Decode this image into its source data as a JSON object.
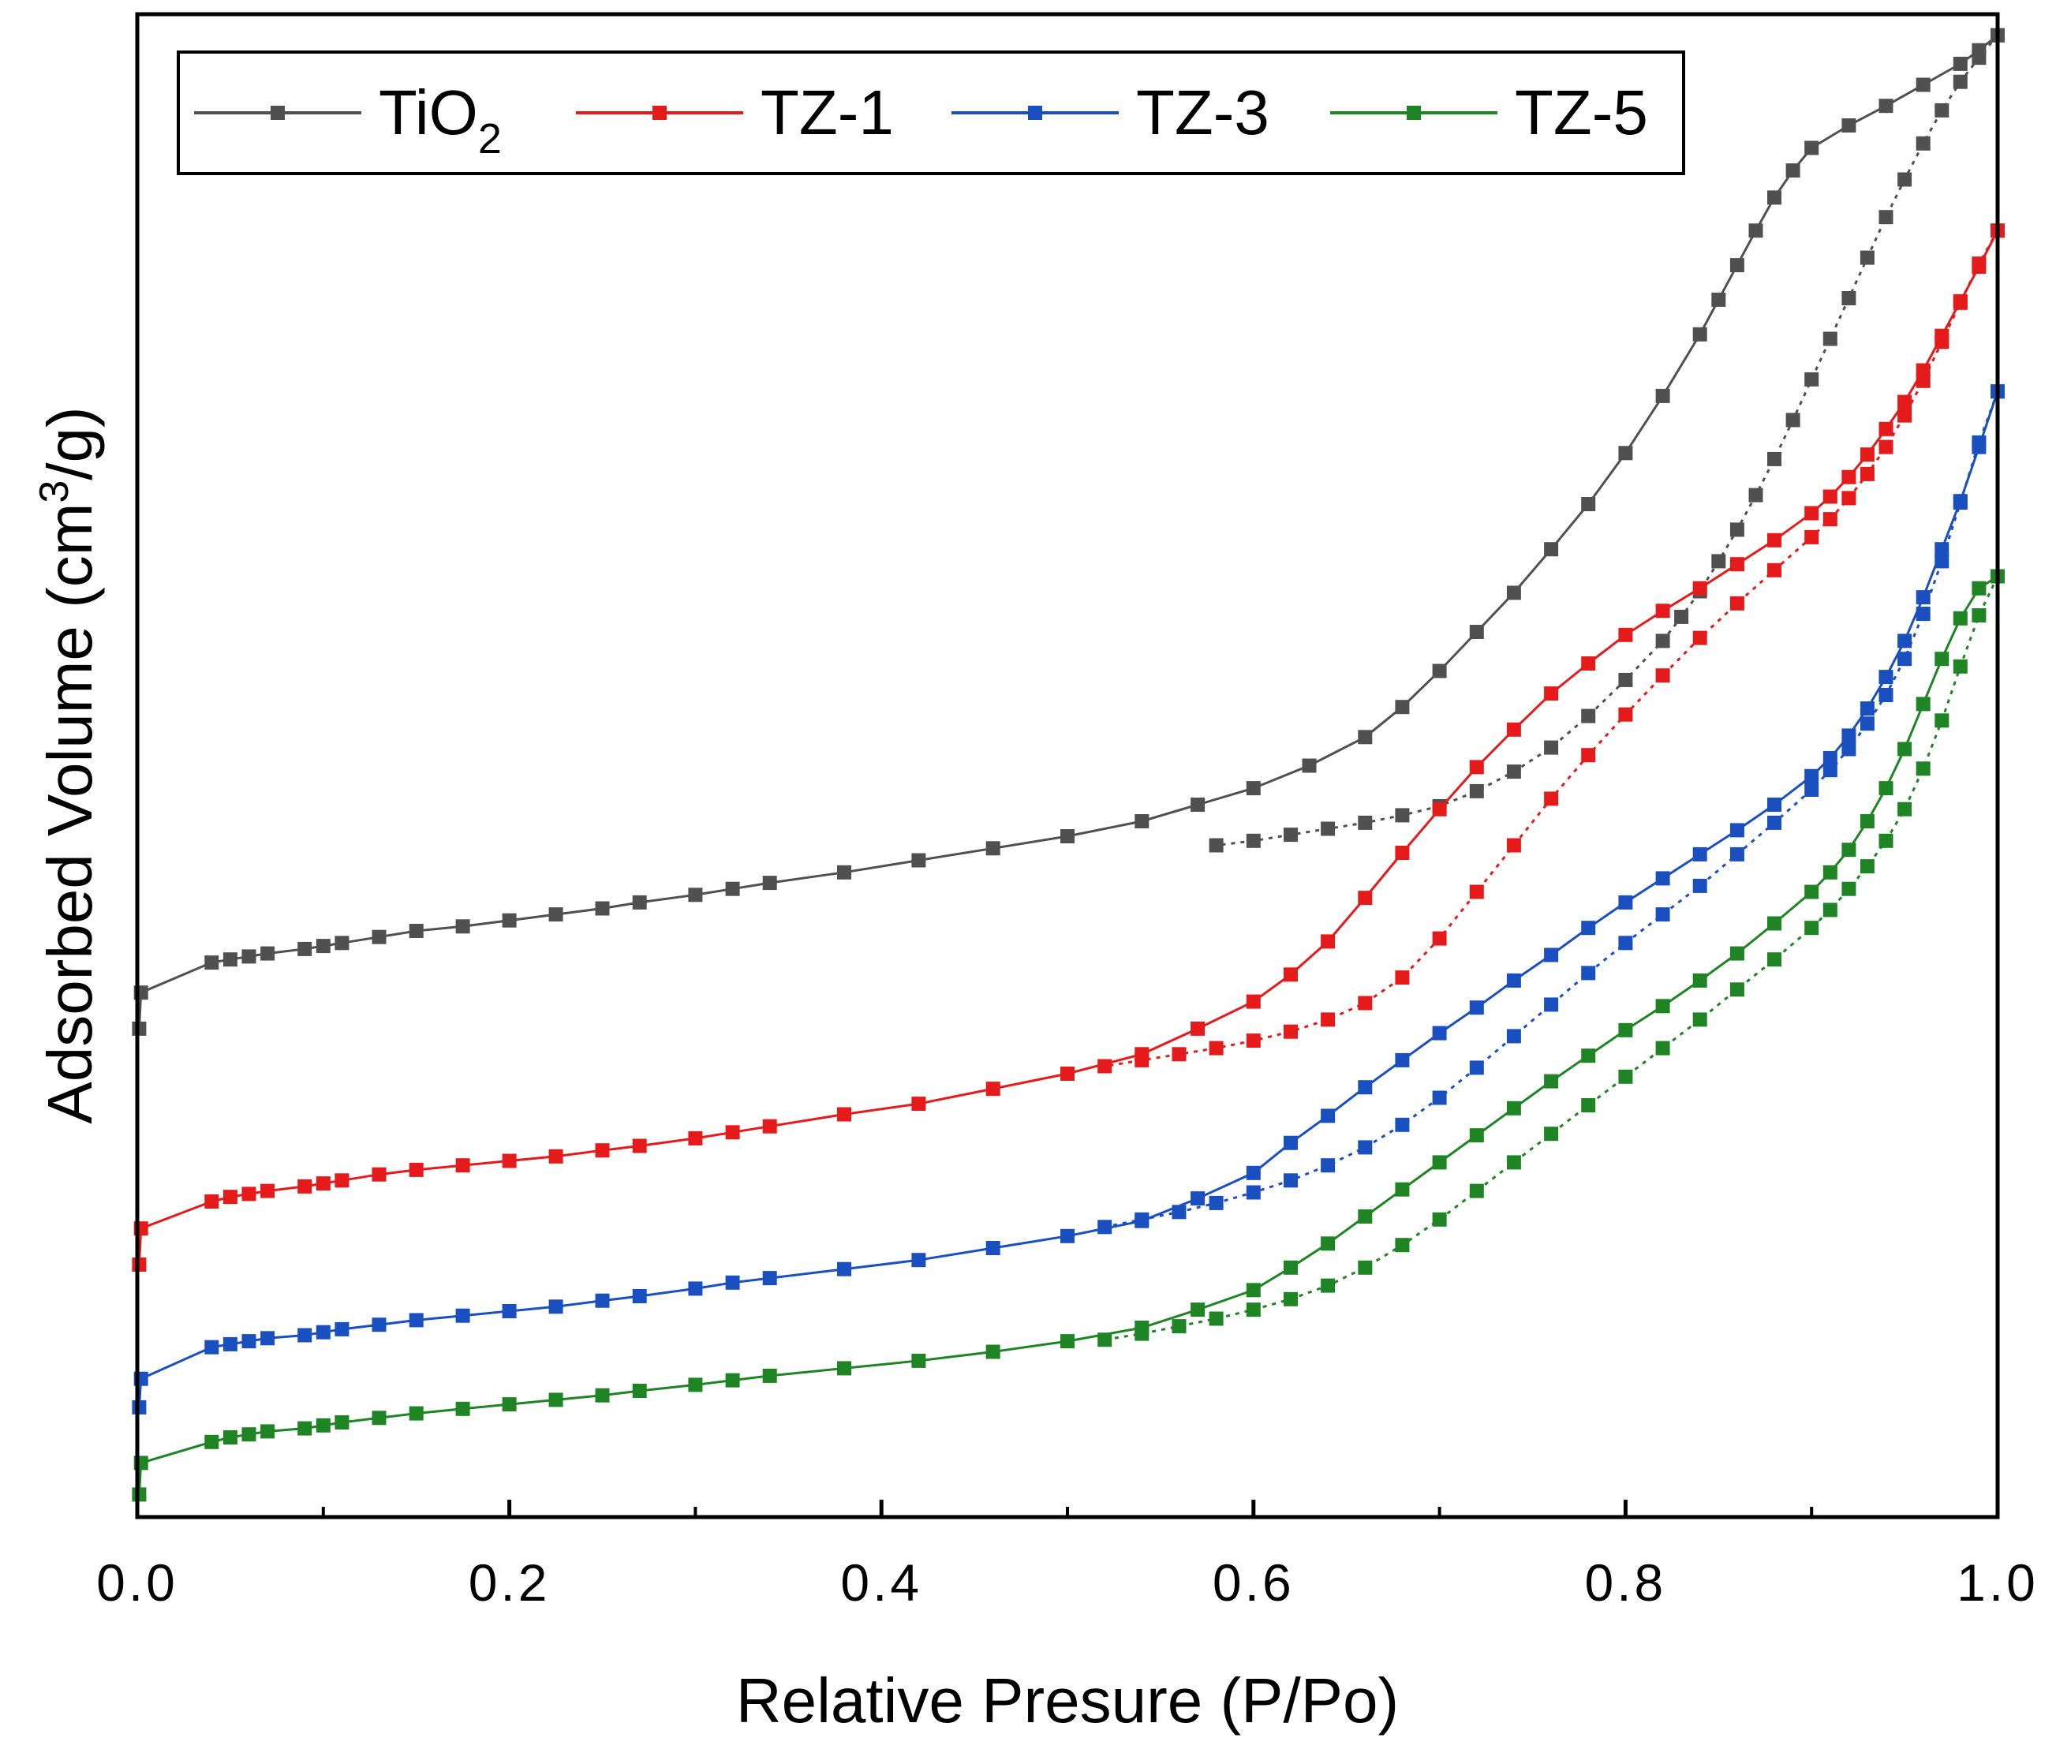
{
  "chart_data": {
    "type": "line",
    "title": "",
    "xlabel": "Relative Presure (P/Po)",
    "ylabel_parts": [
      "Adsorbed Volume (cm",
      "3",
      "/g)"
    ],
    "xlim": [
      0.0,
      1.0
    ],
    "ylim": [
      0,
      100
    ],
    "y_ticks_labeled": false,
    "x_ticks": [
      {
        "value": 0.0,
        "label": "0.0"
      },
      {
        "value": 0.2,
        "label": "0.2"
      },
      {
        "value": 0.4,
        "label": "0.4"
      },
      {
        "value": 0.6,
        "label": "0.6"
      },
      {
        "value": 0.8,
        "label": "0.8"
      },
      {
        "value": 1.0,
        "label": "1.0"
      }
    ],
    "x_minor_ticks": [
      0.1,
      0.3,
      0.5,
      0.7,
      0.9
    ],
    "legend_position": "top",
    "series": [
      {
        "name": "TiO2",
        "label_main": "TiO",
        "label_sub": "2",
        "color": "#505050",
        "adsorption": {
          "x": [
            0.001,
            0.002,
            0.04,
            0.05,
            0.06,
            0.07,
            0.09,
            0.1,
            0.11,
            0.13,
            0.15,
            0.175,
            0.2,
            0.225,
            0.25,
            0.27,
            0.3,
            0.32,
            0.34,
            0.38,
            0.42,
            0.46,
            0.5,
            0.54,
            0.57,
            0.6,
            0.63,
            0.66,
            0.68,
            0.7,
            0.72,
            0.74,
            0.76,
            0.78,
            0.8,
            0.82,
            0.84,
            0.85,
            0.86,
            0.87,
            0.88,
            0.89,
            0.9,
            0.92,
            0.94,
            0.96,
            0.98,
            0.99,
            1.0
          ],
          "y": [
            32.5,
            34.9,
            36.9,
            37.1,
            37.3,
            37.5,
            37.8,
            38.0,
            38.2,
            38.6,
            39.0,
            39.3,
            39.7,
            40.1,
            40.5,
            40.9,
            41.4,
            41.8,
            42.2,
            42.9,
            43.7,
            44.5,
            45.3,
            46.3,
            47.4,
            48.5,
            50.0,
            51.9,
            53.9,
            56.3,
            58.9,
            61.5,
            64.4,
            67.4,
            70.8,
            74.6,
            78.7,
            81.0,
            83.3,
            85.6,
            87.8,
            89.6,
            91.1,
            92.6,
            93.9,
            95.3,
            96.7,
            97.6,
            98.6
          ]
        },
        "desorption": {
          "x": [
            1.0,
            0.99,
            0.98,
            0.97,
            0.96,
            0.95,
            0.94,
            0.93,
            0.92,
            0.91,
            0.9,
            0.89,
            0.88,
            0.87,
            0.86,
            0.85,
            0.84,
            0.83,
            0.82,
            0.8,
            0.78,
            0.76,
            0.74,
            0.72,
            0.7,
            0.68,
            0.66,
            0.64,
            0.62,
            0.6,
            0.58
          ],
          "y": [
            98.6,
            97.1,
            95.5,
            93.6,
            91.4,
            89.0,
            86.5,
            83.8,
            81.1,
            78.4,
            75.7,
            73.0,
            70.4,
            68.0,
            65.7,
            63.6,
            61.6,
            59.9,
            58.3,
            55.7,
            53.3,
            51.2,
            49.6,
            48.3,
            47.3,
            46.7,
            46.2,
            45.8,
            45.4,
            45.0,
            44.7
          ]
        }
      },
      {
        "name": "TZ-1",
        "label_main": "TZ-1",
        "label_sub": "",
        "color": "#e51a1a",
        "adsorption": {
          "x": [
            0.001,
            0.002,
            0.04,
            0.05,
            0.06,
            0.07,
            0.09,
            0.1,
            0.11,
            0.13,
            0.15,
            0.175,
            0.2,
            0.225,
            0.25,
            0.27,
            0.3,
            0.32,
            0.34,
            0.38,
            0.42,
            0.46,
            0.5,
            0.54,
            0.57,
            0.6,
            0.62,
            0.64,
            0.66,
            0.68,
            0.7,
            0.72,
            0.74,
            0.76,
            0.78,
            0.8,
            0.82,
            0.84,
            0.86,
            0.88,
            0.9,
            0.91,
            0.92,
            0.93,
            0.94,
            0.95,
            0.96,
            0.97,
            0.98,
            0.99,
            1.0
          ],
          "y": [
            16.8,
            19.2,
            21.0,
            21.3,
            21.5,
            21.7,
            22.0,
            22.2,
            22.4,
            22.8,
            23.1,
            23.4,
            23.7,
            24.0,
            24.4,
            24.7,
            25.2,
            25.6,
            26.0,
            26.8,
            27.5,
            28.5,
            29.5,
            30.8,
            32.5,
            34.3,
            36.1,
            38.3,
            41.2,
            44.2,
            47.1,
            49.9,
            52.4,
            54.8,
            56.8,
            58.7,
            60.3,
            61.8,
            63.4,
            65.0,
            66.8,
            67.9,
            69.2,
            70.7,
            72.4,
            74.2,
            76.3,
            78.6,
            80.9,
            83.2,
            85.6
          ]
        },
        "desorption": {
          "x": [
            1.0,
            0.99,
            0.98,
            0.97,
            0.96,
            0.95,
            0.94,
            0.93,
            0.92,
            0.91,
            0.9,
            0.88,
            0.86,
            0.84,
            0.82,
            0.8,
            0.78,
            0.76,
            0.74,
            0.72,
            0.7,
            0.68,
            0.66,
            0.64,
            0.62,
            0.6,
            0.58,
            0.56,
            0.54,
            0.52
          ],
          "y": [
            85.6,
            83.4,
            80.8,
            78.2,
            75.6,
            73.3,
            71.2,
            69.4,
            67.8,
            66.4,
            65.2,
            63.0,
            60.8,
            58.5,
            56.0,
            53.4,
            50.7,
            47.8,
            44.7,
            41.6,
            38.5,
            35.9,
            34.2,
            33.1,
            32.3,
            31.7,
            31.2,
            30.8,
            30.4,
            30.0
          ]
        }
      },
      {
        "name": "TZ-3",
        "label_main": "TZ-3",
        "label_sub": "",
        "color": "#1a4fc0",
        "adsorption": {
          "x": [
            0.001,
            0.002,
            0.04,
            0.05,
            0.06,
            0.07,
            0.09,
            0.1,
            0.11,
            0.13,
            0.15,
            0.175,
            0.2,
            0.225,
            0.25,
            0.27,
            0.3,
            0.32,
            0.34,
            0.38,
            0.42,
            0.46,
            0.5,
            0.54,
            0.57,
            0.6,
            0.62,
            0.64,
            0.66,
            0.68,
            0.7,
            0.72,
            0.74,
            0.76,
            0.78,
            0.8,
            0.82,
            0.84,
            0.86,
            0.88,
            0.9,
            0.91,
            0.92,
            0.93,
            0.94,
            0.95,
            0.96,
            0.97,
            0.98,
            0.99,
            1.0
          ],
          "y": [
            7.3,
            9.2,
            11.3,
            11.5,
            11.7,
            11.9,
            12.1,
            12.3,
            12.5,
            12.8,
            13.1,
            13.4,
            13.7,
            14.0,
            14.4,
            14.7,
            15.2,
            15.6,
            15.9,
            16.5,
            17.1,
            17.9,
            18.7,
            19.7,
            21.2,
            22.9,
            24.9,
            26.7,
            28.6,
            30.4,
            32.2,
            33.9,
            35.7,
            37.4,
            39.2,
            40.9,
            42.5,
            44.1,
            45.7,
            47.4,
            49.3,
            50.5,
            52.0,
            53.8,
            55.9,
            58.3,
            61.2,
            64.4,
            67.6,
            71.2,
            74.9
          ]
        },
        "desorption": {
          "x": [
            1.0,
            0.99,
            0.98,
            0.97,
            0.96,
            0.95,
            0.94,
            0.93,
            0.92,
            0.91,
            0.9,
            0.88,
            0.86,
            0.84,
            0.82,
            0.8,
            0.78,
            0.76,
            0.74,
            0.72,
            0.7,
            0.68,
            0.66,
            0.64,
            0.62,
            0.6,
            0.58,
            0.56,
            0.54,
            0.52
          ],
          "y": [
            74.9,
            71.5,
            67.5,
            63.6,
            60.1,
            57.1,
            54.7,
            52.8,
            51.1,
            49.7,
            48.4,
            46.2,
            44.1,
            42.0,
            40.1,
            38.2,
            36.2,
            34.1,
            32.0,
            29.9,
            27.9,
            26.1,
            24.6,
            23.4,
            22.4,
            21.6,
            20.9,
            20.3,
            19.8,
            19.3
          ]
        }
      },
      {
        "name": "TZ-5",
        "label_main": "TZ-5",
        "label_sub": "",
        "color": "#1e8424",
        "adsorption": {
          "x": [
            0.001,
            0.002,
            0.04,
            0.05,
            0.06,
            0.07,
            0.09,
            0.1,
            0.11,
            0.13,
            0.15,
            0.175,
            0.2,
            0.225,
            0.25,
            0.27,
            0.3,
            0.32,
            0.34,
            0.38,
            0.42,
            0.46,
            0.5,
            0.54,
            0.57,
            0.6,
            0.62,
            0.64,
            0.66,
            0.68,
            0.7,
            0.72,
            0.74,
            0.76,
            0.78,
            0.8,
            0.82,
            0.84,
            0.86,
            0.88,
            0.9,
            0.91,
            0.92,
            0.93,
            0.94,
            0.95,
            0.96,
            0.97,
            0.98,
            0.99,
            1.0
          ],
          "y": [
            1.5,
            3.6,
            5.0,
            5.3,
            5.5,
            5.7,
            5.9,
            6.1,
            6.3,
            6.6,
            6.9,
            7.2,
            7.5,
            7.8,
            8.1,
            8.4,
            8.8,
            9.1,
            9.4,
            9.9,
            10.4,
            11.0,
            11.7,
            12.6,
            13.8,
            15.1,
            16.6,
            18.2,
            20.0,
            21.8,
            23.6,
            25.4,
            27.2,
            29.0,
            30.7,
            32.4,
            34.0,
            35.7,
            37.5,
            39.5,
            41.6,
            42.9,
            44.4,
            46.3,
            48.5,
            51.1,
            54.1,
            57.1,
            59.8,
            61.8,
            62.6
          ]
        },
        "desorption": {
          "x": [
            1.0,
            0.99,
            0.98,
            0.97,
            0.96,
            0.95,
            0.94,
            0.93,
            0.92,
            0.91,
            0.9,
            0.88,
            0.86,
            0.84,
            0.82,
            0.8,
            0.78,
            0.76,
            0.74,
            0.72,
            0.7,
            0.68,
            0.66,
            0.64,
            0.62,
            0.6,
            0.58,
            0.56,
            0.54,
            0.52
          ],
          "y": [
            62.6,
            60.0,
            56.6,
            53.0,
            49.8,
            47.1,
            45.0,
            43.3,
            41.8,
            40.4,
            39.2,
            37.1,
            35.1,
            33.1,
            31.2,
            29.3,
            27.4,
            25.5,
            23.6,
            21.7,
            19.8,
            18.1,
            16.6,
            15.4,
            14.5,
            13.8,
            13.2,
            12.7,
            12.2,
            11.8
          ]
        }
      }
    ]
  }
}
